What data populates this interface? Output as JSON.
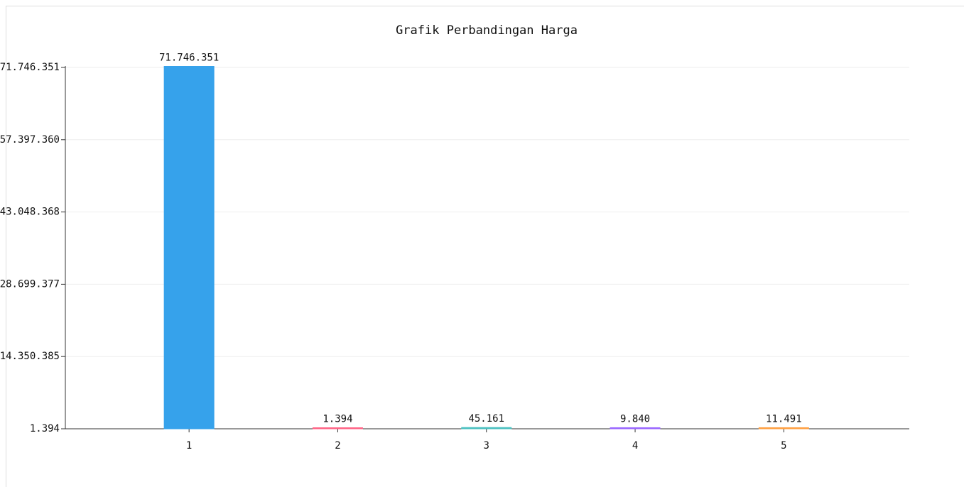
{
  "chart_data": {
    "type": "bar",
    "title": "Grafik Perbandingan Harga",
    "categories": [
      "1",
      "2",
      "3",
      "4",
      "5"
    ],
    "values": [
      71746351,
      1394,
      45161,
      9840,
      11491
    ],
    "value_labels": [
      "71.746.351",
      "1.394",
      "45.161",
      "9.840",
      "11.491"
    ],
    "colors": [
      "#36a2eb",
      "#ff6384",
      "#4bc0c0",
      "#9966ff",
      "#ff9f40"
    ],
    "ylim": [
      1394,
      71746351
    ],
    "yticks": [
      {
        "value": 1394,
        "label": "1.394"
      },
      {
        "value": 14350385,
        "label": "14.350.385"
      },
      {
        "value": 28699377,
        "label": "28.699.377"
      },
      {
        "value": 43048368,
        "label": "43.048.368"
      },
      {
        "value": 57397360,
        "label": "57.397.360"
      },
      {
        "value": 71746351,
        "label": "71.746.351"
      }
    ],
    "grid": true
  }
}
